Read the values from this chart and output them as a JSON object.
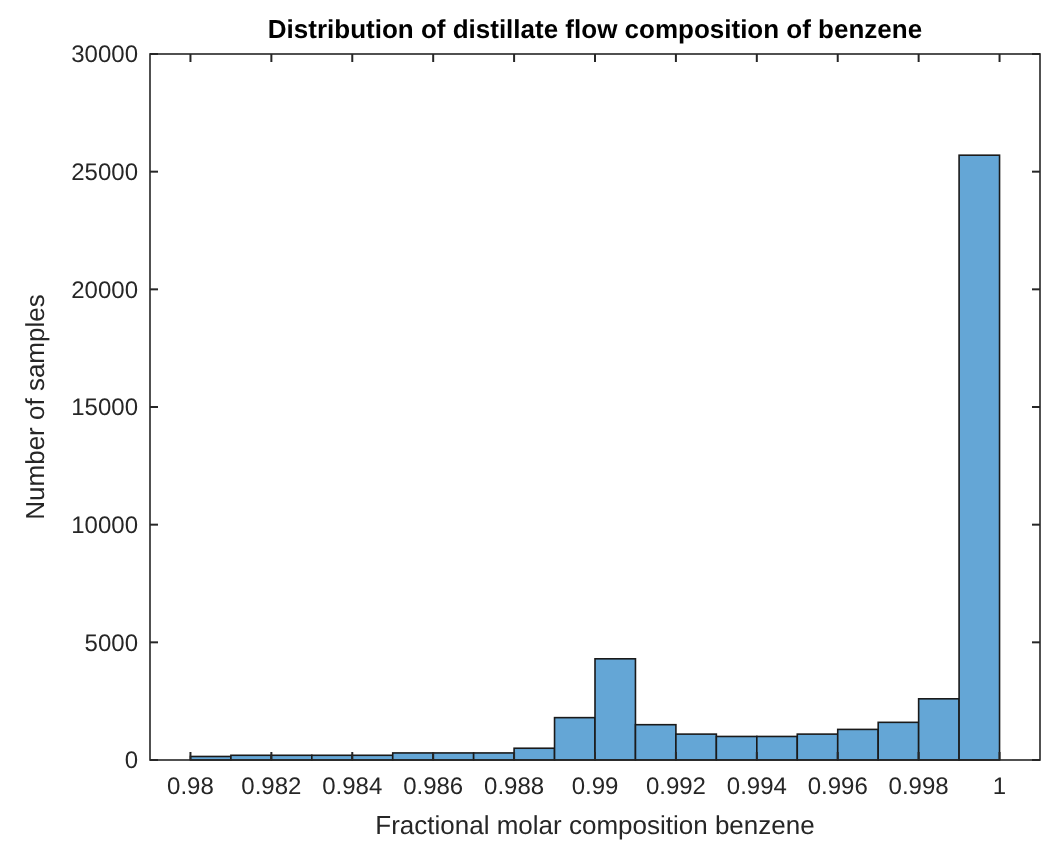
{
  "chart_data": {
    "type": "histogram",
    "title": "Distribution of distillate flow composition of benzene",
    "xlabel": "Fractional molar composition benzene",
    "ylabel": "Number of samples",
    "bins": [
      0.98,
      0.981,
      0.982,
      0.983,
      0.984,
      0.985,
      0.986,
      0.987,
      0.988,
      0.989,
      0.99,
      0.991,
      0.992,
      0.993,
      0.994,
      0.995,
      0.996,
      0.997,
      0.998,
      0.999,
      1
    ],
    "values": [
      150,
      200,
      200,
      200,
      200,
      300,
      300,
      300,
      500,
      1800,
      4300,
      1500,
      1100,
      1000,
      1000,
      1100,
      1300,
      1600,
      2600,
      25700
    ],
    "color": "#64a6d6",
    "xlim": [
      0.979,
      1.001
    ],
    "xticks": [
      0.98,
      0.982,
      0.984,
      0.986,
      0.988,
      0.99,
      0.992,
      0.994,
      0.996,
      0.998,
      1
    ],
    "ylim": [
      0,
      30000
    ],
    "yticks": [
      0,
      5000,
      10000,
      15000,
      20000,
      25000,
      30000
    ],
    "grid": false
  }
}
